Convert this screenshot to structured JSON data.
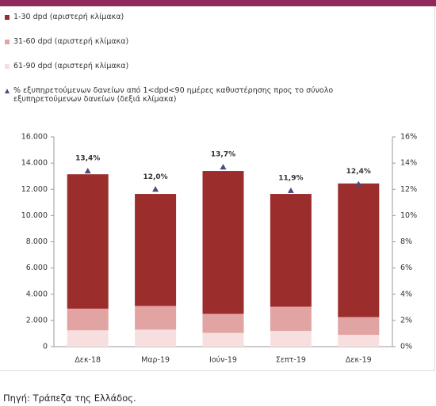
{
  "chart_data": {
    "type": "bar",
    "stacked": true,
    "categories": [
      "Δεκ-18",
      "Μαρ-19",
      "Ιούν-19",
      "Σεπτ-19",
      "Δεκ-19"
    ],
    "series": [
      {
        "name": "1-30 dpd (αριστερή κλίμακα)",
        "color": "#9b2d2d",
        "values": [
          10250,
          8550,
          10900,
          8600,
          10200
        ]
      },
      {
        "name": "31-60 dpd (αριστερή κλίμακα)",
        "color": "#e2a3a3",
        "values": [
          1650,
          1800,
          1450,
          1850,
          1350
        ]
      },
      {
        "name": "61-90 dpd (αριστερή κλίμακα)",
        "color": "#f8dfdf",
        "values": [
          1250,
          1300,
          1050,
          1200,
          900
        ]
      },
      {
        "name": "% εξυπηρετούμενων δανείων από 1<dpd<90 ημέρες καθυστέρησης προς το σύνολο εξυπηρετούμενων δανείων (δεξιά κλίμακα)",
        "color": "#4b4a7a",
        "type": "scatter",
        "axis": "y2",
        "values": [
          13.4,
          12.0,
          13.7,
          11.9,
          12.4
        ],
        "value_labels": [
          "13,4%",
          "12,0%",
          "13,7%",
          "11,9%",
          "12,4%"
        ]
      }
    ],
    "ylim": [
      0,
      16000
    ],
    "yticks": [
      0,
      {
        "value": 2000,
        "label": "2.000"
      },
      {
        "value": 4000,
        "label": "4.000"
      },
      {
        "value": 6000,
        "label": "6.000"
      },
      {
        "value": 8000,
        "label": "8.000"
      },
      {
        "value": 10000,
        "label": "10.000"
      },
      {
        "value": 12000,
        "label": "12.000"
      },
      {
        "value": 14000,
        "label": "14.000"
      },
      {
        "value": 16000,
        "label": "16.000"
      }
    ],
    "y2lim": [
      0,
      16
    ],
    "y2ticks": [
      {
        "value": 0,
        "label": "0%"
      },
      {
        "value": 2,
        "label": "2%"
      },
      {
        "value": 4,
        "label": "4%"
      },
      {
        "value": 6,
        "label": "6%"
      },
      {
        "value": 8,
        "label": "8%"
      },
      {
        "value": 10,
        "label": "10%"
      },
      {
        "value": 12,
        "label": "12%"
      },
      {
        "value": 14,
        "label": "14%"
      },
      {
        "value": 16,
        "label": "16%"
      }
    ],
    "source": "Πηγή: Τράπεζα της Ελλάδος."
  }
}
